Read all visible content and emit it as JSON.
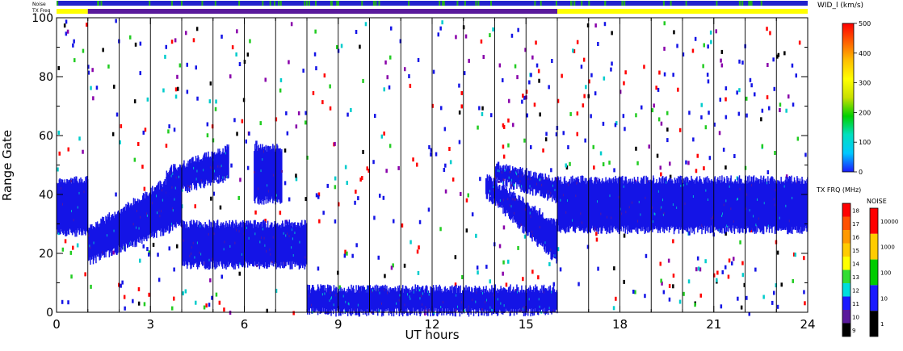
{
  "chart_data": {
    "type": "scatter",
    "title": "",
    "top_strip_labels": [
      "Noise",
      "TX Freq"
    ],
    "xlabel": "UT hours",
    "ylabel": "Range Gate",
    "xlim": [
      0,
      24
    ],
    "ylim": [
      0,
      100
    ],
    "x_ticks": [
      0,
      3,
      6,
      9,
      12,
      15,
      18,
      21,
      24
    ],
    "y_ticks": [
      0,
      20,
      40,
      60,
      80,
      100
    ],
    "scan_boundaries_hours": [
      1,
      2,
      3,
      4,
      5,
      6,
      7,
      8,
      9,
      10,
      11,
      12,
      13,
      14,
      15,
      16,
      17,
      18,
      19,
      20,
      21,
      22,
      23
    ],
    "tx_freq_strip": [
      {
        "start": 0,
        "end": 1,
        "color": "#ffff00"
      },
      {
        "start": 1,
        "end": 16,
        "color": "#5a1a9c"
      },
      {
        "start": 16,
        "end": 24,
        "color": "#ffff00"
      }
    ],
    "noise_strip_color": "#2222cc",
    "noise_strip_flecks_color": "#22aa22",
    "echo_regions": [
      {
        "label": "band A",
        "from_hour": 0,
        "to_hour": 1,
        "gate_low": 27,
        "gate_high": 45,
        "color": "#1414e6"
      },
      {
        "label": "band A rise",
        "from_hour": 1,
        "to_hour": 4,
        "gate_low_start": 17,
        "gate_low_end": 30,
        "gate_high_start": 28,
        "gate_high_end": 48,
        "color": "#1414e6"
      },
      {
        "label": "band B upper",
        "from_hour": 3.5,
        "to_hour": 5.5,
        "gate_low_start": 40,
        "gate_low_end": 46,
        "gate_high_start": 48,
        "gate_high_end": 56,
        "color": "#1414e6"
      },
      {
        "label": "band B lower",
        "from_hour": 4,
        "to_hour": 8,
        "gate_low": 16,
        "gate_high": 30,
        "color": "#1414e6"
      },
      {
        "label": "band C",
        "from_hour": 6.3,
        "to_hour": 7.2,
        "gate_low": 38,
        "gate_high": 56,
        "color": "#1414e6"
      },
      {
        "label": "near range",
        "from_hour": 8,
        "to_hour": 16,
        "gate_low": 0,
        "gate_high": 8,
        "color": "#1414e6"
      },
      {
        "label": "descending band",
        "from_hour": 13.7,
        "to_hour": 16,
        "gate_low_start": 40,
        "gate_low_end": 17,
        "gate_high_start": 46,
        "gate_high_end": 30,
        "color": "#1414e6"
      },
      {
        "label": "upper arc",
        "from_hour": 14,
        "to_hour": 16,
        "gate_low_start": 45,
        "gate_low_end": 38,
        "gate_high_start": 50,
        "gate_high_end": 45,
        "color": "#1414e6"
      },
      {
        "label": "evening band",
        "from_hour": 16,
        "to_hour": 24,
        "gate_low": 28,
        "gate_high": 45,
        "color": "#1414e6"
      }
    ],
    "colorbars": [
      {
        "title": "WID_l  (km/s)",
        "ticks": [
          "500",
          "400",
          "300",
          "200",
          "100",
          "0"
        ],
        "stops": [
          "#1a1aff",
          "#00c8ff",
          "#00e0c0",
          "#00d000",
          "#c8e000",
          "#ffff00",
          "#ffc000",
          "#ff6000",
          "#ff0000"
        ]
      },
      {
        "title": "TX FRQ (MHz)",
        "ticks": [
          "18",
          "17",
          "16",
          "15",
          "14",
          "13",
          "12",
          "11",
          "10",
          "9"
        ],
        "colors": [
          "#ff0000",
          "#ff5000",
          "#ff9900",
          "#ffcc00",
          "#ffff00",
          "#33dd33",
          "#00dddd",
          "#1a1aff",
          "#5a1a9c",
          "#000000"
        ]
      },
      {
        "title": "NOISE",
        "ticks": [
          "10000",
          "1000",
          "100",
          "10",
          "1"
        ],
        "colors": [
          "#ff0000",
          "#ffcc00",
          "#00cc00",
          "#1a1aff",
          "#000000"
        ]
      }
    ]
  }
}
